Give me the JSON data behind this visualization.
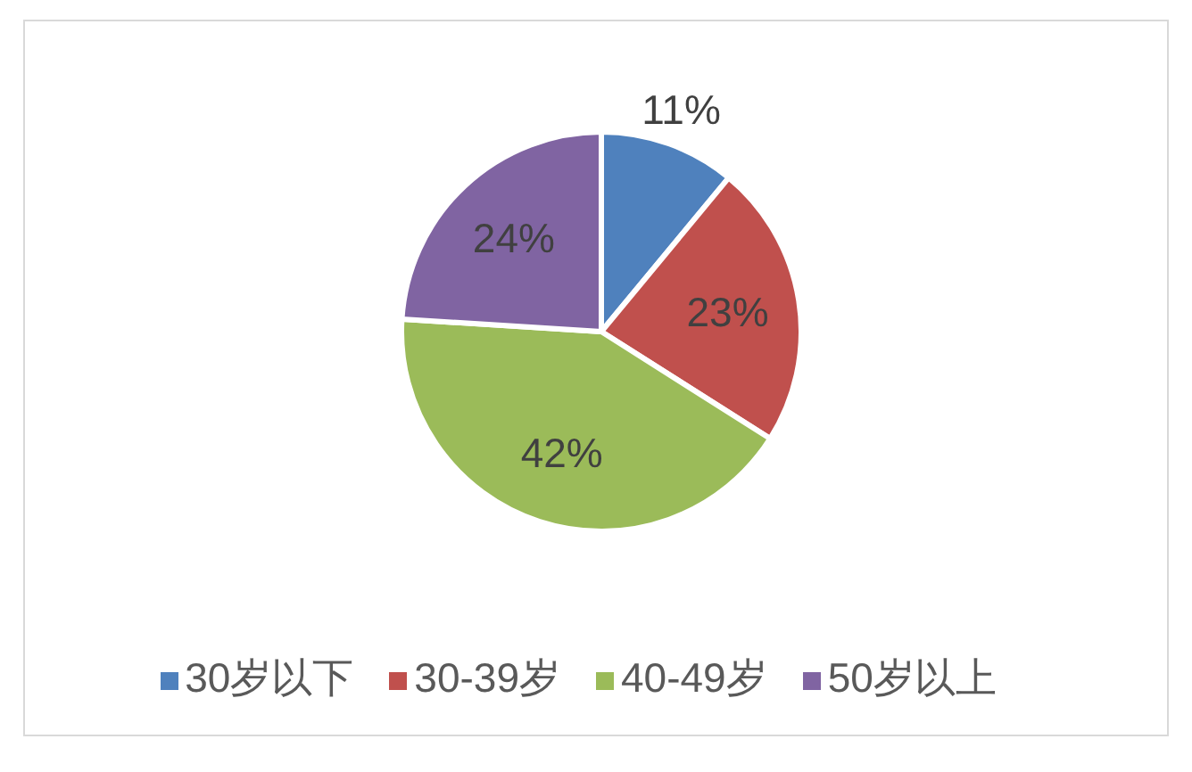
{
  "chart_data": {
    "type": "pie",
    "categories": [
      "30岁以下",
      "30-39岁",
      "40-49岁",
      "50岁以上"
    ],
    "values": [
      11,
      23,
      42,
      24
    ],
    "colors": [
      "#4f81bd",
      "#c0504d",
      "#9bbb59",
      "#8064a2"
    ],
    "value_labels": [
      "11%",
      "23%",
      "42%",
      "24%"
    ],
    "legend": "bottom"
  }
}
